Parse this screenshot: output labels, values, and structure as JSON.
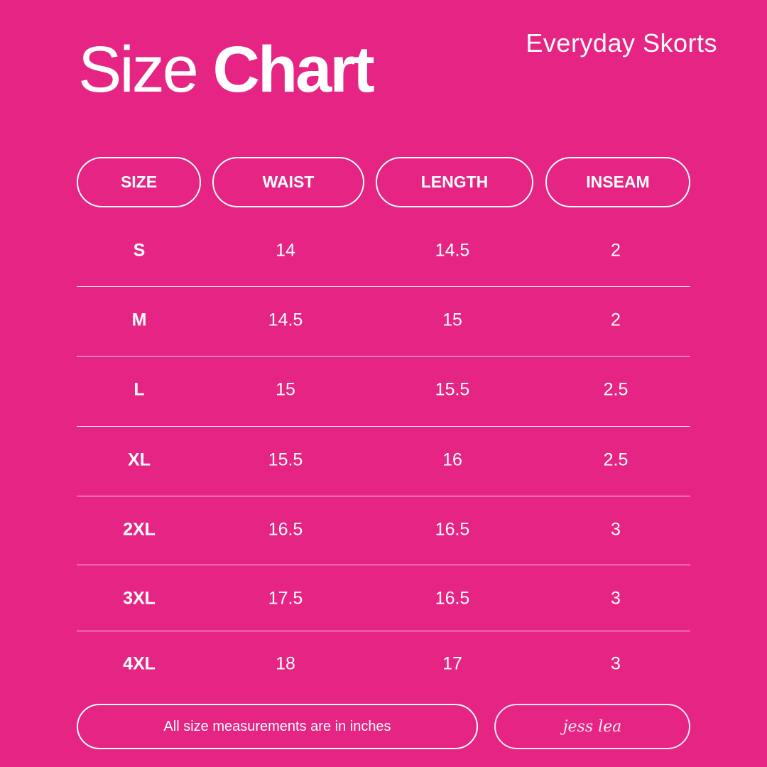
{
  "header": {
    "title_light": "Size",
    "title_bold": "Chart",
    "product": "Everyday Skorts"
  },
  "table": {
    "columns": [
      "SIZE",
      "WAIST",
      "LENGTH",
      "INSEAM"
    ],
    "rows": [
      [
        "S",
        "14",
        "14.5",
        "2"
      ],
      [
        "M",
        "14.5",
        "15",
        "2"
      ],
      [
        "L",
        "15",
        "15.5",
        "2.5"
      ],
      [
        "XL",
        "15.5",
        "16",
        "2.5"
      ],
      [
        "2XL",
        "16.5",
        "16.5",
        "3"
      ],
      [
        "3XL",
        "17.5",
        "16.5",
        "3"
      ],
      [
        "4XL",
        "18",
        "17",
        "3"
      ]
    ]
  },
  "footer": {
    "note": "All size measurements are in inches",
    "signature": "jess lea"
  },
  "colors": {
    "background": "#E62483",
    "foreground": "#FFFFFF"
  }
}
